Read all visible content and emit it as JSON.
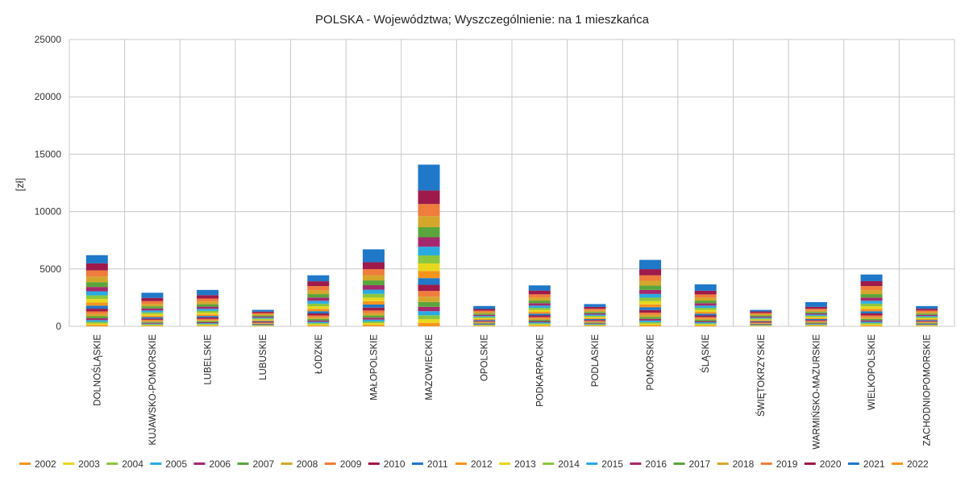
{
  "chart_data": {
    "type": "bar",
    "stacked": true,
    "title": "POLSKA - Województwa; Wyszczególnienie: na 1 mieszkańca",
    "xlabel": "",
    "ylabel": "[zł]",
    "ylim": [
      0,
      25000
    ],
    "yticks": [
      "0",
      "5000",
      "10000",
      "15000",
      "20000",
      "25000"
    ],
    "grid": true,
    "legend_position": "bottom",
    "categories": [
      "DOLNOŚLĄSKIE",
      "KUJAWSKO-POMORSKIE",
      "LUBELSKIE",
      "LUBUSKIE",
      "ŁÓDZKIE",
      "MAŁOPOLSKIE",
      "MAZOWIECKIE",
      "OPOLSKIE",
      "PODKARPACKIE",
      "PODLASKIE",
      "POMORSKIE",
      "ŚLĄSKIE",
      "ŚWIĘTOKRZYSKIE",
      "WARMIŃSKO-MAZURSKIE",
      "WIELKOPOLSKIE",
      "ZACHODNIOPOMORSKIE"
    ],
    "series": [
      {
        "name": "2002",
        "color": "#f7941d",
        "values": [
          120,
          50,
          60,
          30,
          90,
          130,
          300,
          40,
          80,
          45,
          110,
          80,
          30,
          45,
          90,
          40
        ]
      },
      {
        "name": "2003",
        "color": "#e8d81c",
        "values": [
          130,
          55,
          65,
          32,
          95,
          140,
          320,
          42,
          85,
          48,
          120,
          85,
          32,
          48,
          95,
          42
        ]
      },
      {
        "name": "2004",
        "color": "#8cc63f",
        "values": [
          140,
          60,
          70,
          35,
          100,
          150,
          340,
          45,
          90,
          50,
          130,
          90,
          35,
          50,
          100,
          45
        ]
      },
      {
        "name": "2005",
        "color": "#29abe2",
        "values": [
          150,
          65,
          75,
          38,
          110,
          160,
          360,
          48,
          95,
          55,
          140,
          95,
          38,
          55,
          110,
          48
        ]
      },
      {
        "name": "2006",
        "color": "#a6286e",
        "values": [
          160,
          70,
          80,
          40,
          120,
          170,
          380,
          50,
          100,
          60,
          150,
          100,
          40,
          60,
          120,
          50
        ]
      },
      {
        "name": "2007",
        "color": "#5aa63c",
        "values": [
          180,
          80,
          90,
          45,
          130,
          190,
          420,
          55,
          110,
          65,
          165,
          110,
          45,
          65,
          130,
          55
        ]
      },
      {
        "name": "2008",
        "color": "#d4a72c",
        "values": [
          200,
          90,
          100,
          50,
          145,
          210,
          460,
          60,
          120,
          70,
          180,
          120,
          50,
          70,
          145,
          60
        ]
      },
      {
        "name": "2009",
        "color": "#ef7d3c",
        "values": [
          220,
          100,
          110,
          55,
          160,
          230,
          500,
          65,
          130,
          75,
          200,
          130,
          55,
          75,
          160,
          65
        ]
      },
      {
        "name": "2010",
        "color": "#9e1a4b",
        "values": [
          240,
          110,
          120,
          60,
          175,
          250,
          540,
          70,
          140,
          80,
          220,
          140,
          60,
          80,
          175,
          70
        ]
      },
      {
        "name": "2011",
        "color": "#1f78c8",
        "values": [
          260,
          120,
          130,
          65,
          190,
          270,
          580,
          75,
          150,
          85,
          240,
          150,
          65,
          85,
          190,
          75
        ]
      },
      {
        "name": "2012",
        "color": "#f7941d",
        "values": [
          280,
          130,
          140,
          70,
          205,
          290,
          620,
          80,
          160,
          90,
          260,
          160,
          70,
          90,
          205,
          80
        ]
      },
      {
        "name": "2013",
        "color": "#e8d81c",
        "values": [
          300,
          140,
          150,
          75,
          220,
          310,
          660,
          85,
          170,
          95,
          280,
          170,
          75,
          95,
          220,
          85
        ]
      },
      {
        "name": "2014",
        "color": "#8cc63f",
        "values": [
          320,
          150,
          160,
          80,
          235,
          330,
          700,
          90,
          180,
          100,
          300,
          180,
          80,
          100,
          235,
          90
        ]
      },
      {
        "name": "2015",
        "color": "#29abe2",
        "values": [
          350,
          160,
          175,
          85,
          255,
          360,
          760,
          95,
          195,
          105,
          325,
          195,
          85,
          105,
          255,
          95
        ]
      },
      {
        "name": "2016",
        "color": "#a6286e",
        "values": [
          380,
          175,
          190,
          90,
          275,
          390,
          820,
          100,
          210,
          110,
          350,
          210,
          90,
          110,
          275,
          100
        ]
      },
      {
        "name": "2017",
        "color": "#5aa63c",
        "values": [
          420,
          190,
          210,
          95,
          300,
          420,
          880,
          110,
          230,
          120,
          380,
          230,
          95,
          120,
          300,
          110
        ]
      },
      {
        "name": "2018",
        "color": "#d4a72c",
        "values": [
          480,
          210,
          235,
          100,
          330,
          460,
          960,
          120,
          255,
          130,
          420,
          255,
          105,
          130,
          330,
          125
        ]
      },
      {
        "name": "2019",
        "color": "#ef7d3c",
        "values": [
          540,
          240,
          260,
          110,
          370,
          520,
          1060,
          130,
          285,
          145,
          470,
          280,
          115,
          145,
          370,
          140
        ]
      },
      {
        "name": "2020",
        "color": "#9e1a4b",
        "values": [
          620,
          280,
          300,
          125,
          420,
          600,
          1180,
          150,
          330,
          165,
          540,
          320,
          130,
          170,
          430,
          160
        ]
      },
      {
        "name": "2021",
        "color": "#1f78c8",
        "values": [
          710,
          450,
          450,
          155,
          520,
          1130,
          2250,
          260,
          450,
          245,
          810,
          555,
          135,
          410,
          580,
          230
        ]
      },
      {
        "name": "2022",
        "color": "#f7941d",
        "values": [
          0,
          0,
          0,
          0,
          0,
          0,
          0,
          0,
          0,
          0,
          0,
          0,
          0,
          0,
          0,
          0
        ]
      }
    ]
  }
}
